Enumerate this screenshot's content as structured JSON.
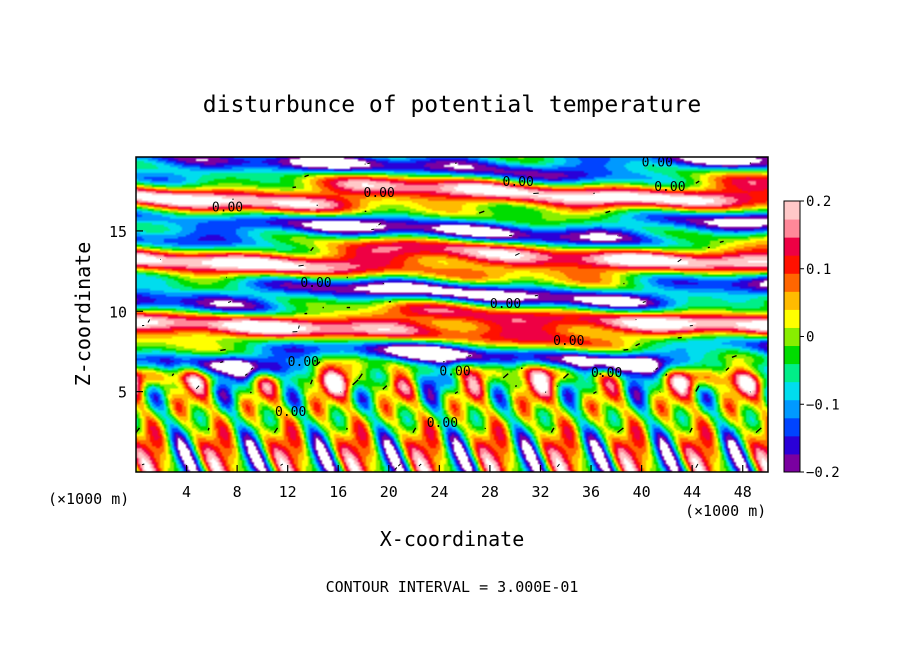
{
  "chart_data": {
    "type": "heatmap",
    "title": "disturbunce of potential temperature",
    "xlabel": "X-coordinate",
    "ylabel": "Z-coordinate",
    "x_unit": "(×1000 m)",
    "z_unit": "(×1000 m)",
    "xlim": [
      0,
      50
    ],
    "ylim": [
      0,
      19.6
    ],
    "x_ticks": [
      4,
      8,
      12,
      16,
      20,
      24,
      28,
      32,
      36,
      40,
      44,
      48
    ],
    "y_ticks": [
      5,
      10,
      15
    ],
    "colorbar": {
      "range": [
        -0.2,
        0.2
      ],
      "ticks": [
        -0.2,
        -0.1,
        0,
        0.1,
        0.2
      ],
      "tick_labels": [
        "−0.2",
        "−0.1",
        "0",
        "0.1",
        "0.2"
      ],
      "colors": [
        "#7a00a0",
        "#2a00d8",
        "#0044ff",
        "#0099ff",
        "#00ddee",
        "#00ee88",
        "#00dd00",
        "#88ee00",
        "#ffff00",
        "#ffbb00",
        "#ff6600",
        "#ff1100",
        "#ee0044",
        "#ff8899",
        "#ffc8c8"
      ]
    },
    "contour_label": "0.00",
    "contour_interval_text": "CONTOUR INTERVAL = 3.000E-01",
    "grid": false,
    "legend": "colorbar-right"
  }
}
